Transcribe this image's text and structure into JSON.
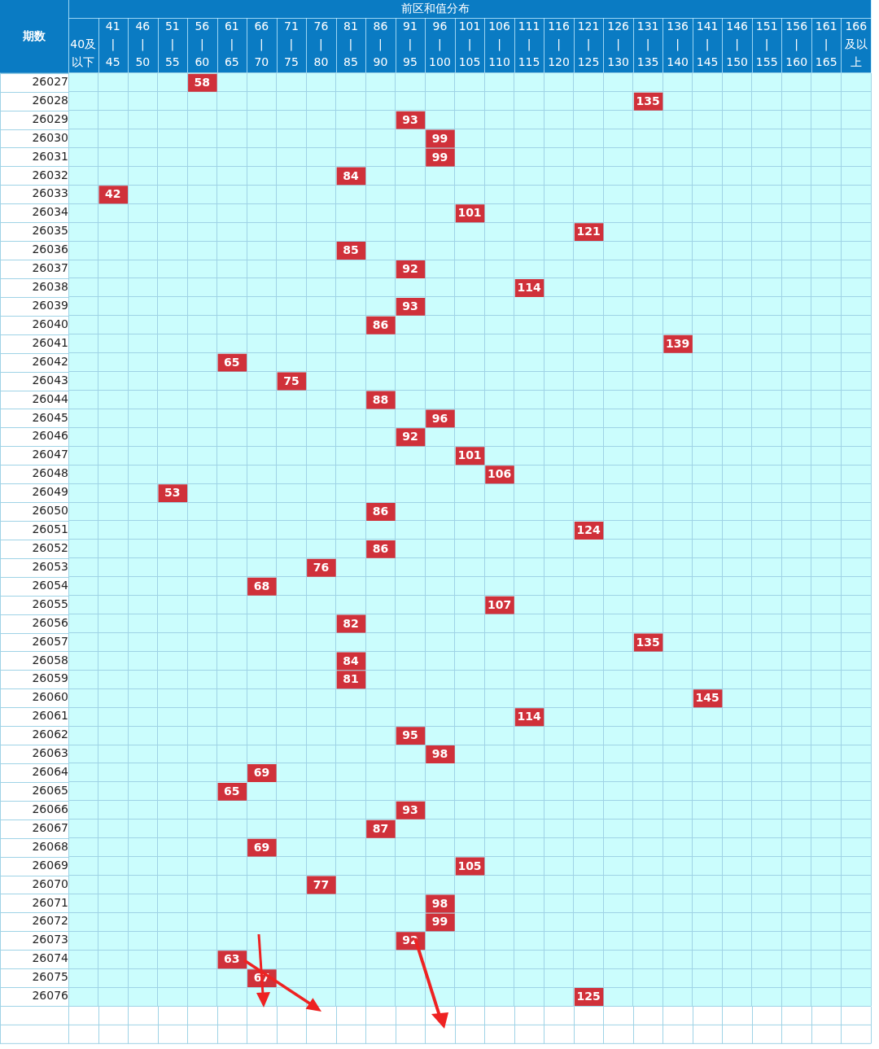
{
  "chart_data": {
    "type": "heatmap",
    "title": "前区和值分布",
    "ylabel": "期数",
    "color": "#d0313a",
    "data_labels": true,
    "categories": [
      "40及以下",
      "41\n|\n45",
      "46\n|\n50",
      "51\n|\n55",
      "56\n|\n60",
      "61\n|\n65",
      "66\n|\n70",
      "71\n|\n75",
      "76\n|\n80",
      "81\n|\n85",
      "86\n|\n90",
      "91\n|\n95",
      "96\n|\n100",
      "101\n|\n105",
      "106\n|\n110",
      "111\n|\n115",
      "116\n|\n120",
      "121\n|\n125",
      "126\n|\n130",
      "131\n|\n135",
      "136\n|\n140",
      "141\n|\n145",
      "146\n|\n150",
      "151\n|\n155",
      "156\n|\n160",
      "161\n|\n165",
      "166及以上"
    ],
    "y_categories": [
      "26027",
      "26028",
      "26029",
      "26030",
      "26031",
      "26032",
      "26033",
      "26034",
      "26035",
      "26036",
      "26037",
      "26038",
      "26039",
      "26040",
      "26041",
      "26042",
      "26043",
      "26044",
      "26045",
      "26046",
      "26047",
      "26048",
      "26049",
      "26050",
      "26051",
      "26052",
      "26053",
      "26054",
      "26055",
      "26056",
      "26057",
      "26058",
      "26059",
      "26060",
      "26061",
      "26062",
      "26063",
      "26064",
      "26065",
      "26066",
      "26067",
      "26068",
      "26069",
      "26070",
      "26071",
      "26072",
      "26073",
      "26074",
      "26075",
      "26076"
    ],
    "cells": [
      [
        null,
        null,
        null,
        null,
        58,
        null,
        null,
        null,
        null,
        null,
        null,
        null,
        null,
        null,
        null,
        null,
        null,
        null,
        null,
        null,
        null,
        null,
        null,
        null,
        null,
        null,
        null
      ],
      [
        null,
        null,
        null,
        null,
        null,
        null,
        null,
        null,
        null,
        null,
        null,
        null,
        null,
        null,
        null,
        null,
        null,
        null,
        null,
        135,
        null,
        null,
        null,
        null,
        null,
        null,
        null
      ],
      [
        null,
        null,
        null,
        null,
        null,
        null,
        null,
        null,
        null,
        null,
        null,
        93,
        null,
        null,
        null,
        null,
        null,
        null,
        null,
        null,
        null,
        null,
        null,
        null,
        null,
        null,
        null
      ],
      [
        null,
        null,
        null,
        null,
        null,
        null,
        null,
        null,
        null,
        null,
        null,
        null,
        99,
        null,
        null,
        null,
        null,
        null,
        null,
        null,
        null,
        null,
        null,
        null,
        null,
        null,
        null
      ],
      [
        null,
        null,
        null,
        null,
        null,
        null,
        null,
        null,
        null,
        null,
        null,
        null,
        99,
        null,
        null,
        null,
        null,
        null,
        null,
        null,
        null,
        null,
        null,
        null,
        null,
        null,
        null
      ],
      [
        null,
        null,
        null,
        null,
        null,
        null,
        null,
        null,
        null,
        84,
        null,
        null,
        null,
        null,
        null,
        null,
        null,
        null,
        null,
        null,
        null,
        null,
        null,
        null,
        null,
        null,
        null
      ],
      [
        null,
        42,
        null,
        null,
        null,
        null,
        null,
        null,
        null,
        null,
        null,
        null,
        null,
        null,
        null,
        null,
        null,
        null,
        null,
        null,
        null,
        null,
        null,
        null,
        null,
        null,
        null
      ],
      [
        null,
        null,
        null,
        null,
        null,
        null,
        null,
        null,
        null,
        null,
        null,
        null,
        null,
        101,
        null,
        null,
        null,
        null,
        null,
        null,
        null,
        null,
        null,
        null,
        null,
        null,
        null
      ],
      [
        null,
        null,
        null,
        null,
        null,
        null,
        null,
        null,
        null,
        null,
        null,
        null,
        null,
        null,
        null,
        null,
        null,
        121,
        null,
        null,
        null,
        null,
        null,
        null,
        null,
        null,
        null
      ],
      [
        null,
        null,
        null,
        null,
        null,
        null,
        null,
        null,
        null,
        85,
        null,
        null,
        null,
        null,
        null,
        null,
        null,
        null,
        null,
        null,
        null,
        null,
        null,
        null,
        null,
        null,
        null
      ],
      [
        null,
        null,
        null,
        null,
        null,
        null,
        null,
        null,
        null,
        null,
        null,
        92,
        null,
        null,
        null,
        null,
        null,
        null,
        null,
        null,
        null,
        null,
        null,
        null,
        null,
        null,
        null
      ],
      [
        null,
        null,
        null,
        null,
        null,
        null,
        null,
        null,
        null,
        null,
        null,
        null,
        null,
        null,
        null,
        114,
        null,
        null,
        null,
        null,
        null,
        null,
        null,
        null,
        null,
        null,
        null
      ],
      [
        null,
        null,
        null,
        null,
        null,
        null,
        null,
        null,
        null,
        null,
        null,
        93,
        null,
        null,
        null,
        null,
        null,
        null,
        null,
        null,
        null,
        null,
        null,
        null,
        null,
        null,
        null
      ],
      [
        null,
        null,
        null,
        null,
        null,
        null,
        null,
        null,
        null,
        null,
        86,
        null,
        null,
        null,
        null,
        null,
        null,
        null,
        null,
        null,
        null,
        null,
        null,
        null,
        null,
        null,
        null
      ],
      [
        null,
        null,
        null,
        null,
        null,
        null,
        null,
        null,
        null,
        null,
        null,
        null,
        null,
        null,
        null,
        null,
        null,
        null,
        null,
        null,
        139,
        null,
        null,
        null,
        null,
        null,
        null
      ],
      [
        null,
        null,
        null,
        null,
        null,
        65,
        null,
        null,
        null,
        null,
        null,
        null,
        null,
        null,
        null,
        null,
        null,
        null,
        null,
        null,
        null,
        null,
        null,
        null,
        null,
        null,
        null
      ],
      [
        null,
        null,
        null,
        null,
        null,
        null,
        null,
        75,
        null,
        null,
        null,
        null,
        null,
        null,
        null,
        null,
        null,
        null,
        null,
        null,
        null,
        null,
        null,
        null,
        null,
        null,
        null
      ],
      [
        null,
        null,
        null,
        null,
        null,
        null,
        null,
        null,
        null,
        null,
        88,
        null,
        null,
        null,
        null,
        null,
        null,
        null,
        null,
        null,
        null,
        null,
        null,
        null,
        null,
        null,
        null
      ],
      [
        null,
        null,
        null,
        null,
        null,
        null,
        null,
        null,
        null,
        null,
        null,
        null,
        96,
        null,
        null,
        null,
        null,
        null,
        null,
        null,
        null,
        null,
        null,
        null,
        null,
        null,
        null
      ],
      [
        null,
        null,
        null,
        null,
        null,
        null,
        null,
        null,
        null,
        null,
        null,
        92,
        null,
        null,
        null,
        null,
        null,
        null,
        null,
        null,
        null,
        null,
        null,
        null,
        null,
        null,
        null
      ],
      [
        null,
        null,
        null,
        null,
        null,
        null,
        null,
        null,
        null,
        null,
        null,
        null,
        null,
        101,
        null,
        null,
        null,
        null,
        null,
        null,
        null,
        null,
        null,
        null,
        null,
        null,
        null
      ],
      [
        null,
        null,
        null,
        null,
        null,
        null,
        null,
        null,
        null,
        null,
        null,
        null,
        null,
        null,
        106,
        null,
        null,
        null,
        null,
        null,
        null,
        null,
        null,
        null,
        null,
        null,
        null
      ],
      [
        null,
        null,
        null,
        53,
        null,
        null,
        null,
        null,
        null,
        null,
        null,
        null,
        null,
        null,
        null,
        null,
        null,
        null,
        null,
        null,
        null,
        null,
        null,
        null,
        null,
        null,
        null
      ],
      [
        null,
        null,
        null,
        null,
        null,
        null,
        null,
        null,
        null,
        null,
        86,
        null,
        null,
        null,
        null,
        null,
        null,
        null,
        null,
        null,
        null,
        null,
        null,
        null,
        null,
        null,
        null
      ],
      [
        null,
        null,
        null,
        null,
        null,
        null,
        null,
        null,
        null,
        null,
        null,
        null,
        null,
        null,
        null,
        null,
        null,
        124,
        null,
        null,
        null,
        null,
        null,
        null,
        null,
        null,
        null
      ],
      [
        null,
        null,
        null,
        null,
        null,
        null,
        null,
        null,
        null,
        null,
        86,
        null,
        null,
        null,
        null,
        null,
        null,
        null,
        null,
        null,
        null,
        null,
        null,
        null,
        null,
        null,
        null
      ],
      [
        null,
        null,
        null,
        null,
        null,
        null,
        null,
        null,
        76,
        null,
        null,
        null,
        null,
        null,
        null,
        null,
        null,
        null,
        null,
        null,
        null,
        null,
        null,
        null,
        null,
        null,
        null
      ],
      [
        null,
        null,
        null,
        null,
        null,
        null,
        68,
        null,
        null,
        null,
        null,
        null,
        null,
        null,
        null,
        null,
        null,
        null,
        null,
        null,
        null,
        null,
        null,
        null,
        null,
        null,
        null
      ],
      [
        null,
        null,
        null,
        null,
        null,
        null,
        null,
        null,
        null,
        null,
        null,
        null,
        null,
        null,
        107,
        null,
        null,
        null,
        null,
        null,
        null,
        null,
        null,
        null,
        null,
        null,
        null
      ],
      [
        null,
        null,
        null,
        null,
        null,
        null,
        null,
        null,
        null,
        82,
        null,
        null,
        null,
        null,
        null,
        null,
        null,
        null,
        null,
        null,
        null,
        null,
        null,
        null,
        null,
        null,
        null
      ],
      [
        null,
        null,
        null,
        null,
        null,
        null,
        null,
        null,
        null,
        null,
        null,
        null,
        null,
        null,
        null,
        null,
        null,
        null,
        null,
        135,
        null,
        null,
        null,
        null,
        null,
        null,
        null
      ],
      [
        null,
        null,
        null,
        null,
        null,
        null,
        null,
        null,
        null,
        84,
        null,
        null,
        null,
        null,
        null,
        null,
        null,
        null,
        null,
        null,
        null,
        null,
        null,
        null,
        null,
        null,
        null
      ],
      [
        null,
        null,
        null,
        null,
        null,
        null,
        null,
        null,
        null,
        81,
        null,
        null,
        null,
        null,
        null,
        null,
        null,
        null,
        null,
        null,
        null,
        null,
        null,
        null,
        null,
        null,
        null
      ],
      [
        null,
        null,
        null,
        null,
        null,
        null,
        null,
        null,
        null,
        null,
        null,
        null,
        null,
        null,
        null,
        null,
        null,
        null,
        null,
        null,
        null,
        145,
        null,
        null,
        null,
        null,
        null
      ],
      [
        null,
        null,
        null,
        null,
        null,
        null,
        null,
        null,
        null,
        null,
        null,
        null,
        null,
        null,
        null,
        114,
        null,
        null,
        null,
        null,
        null,
        null,
        null,
        null,
        null,
        null,
        null
      ],
      [
        null,
        null,
        null,
        null,
        null,
        null,
        null,
        null,
        null,
        null,
        null,
        95,
        null,
        null,
        null,
        null,
        null,
        null,
        null,
        null,
        null,
        null,
        null,
        null,
        null,
        null,
        null
      ],
      [
        null,
        null,
        null,
        null,
        null,
        null,
        null,
        null,
        null,
        null,
        null,
        null,
        98,
        null,
        null,
        null,
        null,
        null,
        null,
        null,
        null,
        null,
        null,
        null,
        null,
        null,
        null
      ],
      [
        null,
        null,
        null,
        null,
        null,
        null,
        69,
        null,
        null,
        null,
        null,
        null,
        null,
        null,
        null,
        null,
        null,
        null,
        null,
        null,
        null,
        null,
        null,
        null,
        null,
        null,
        null
      ],
      [
        null,
        null,
        null,
        null,
        null,
        65,
        null,
        null,
        null,
        null,
        null,
        null,
        null,
        null,
        null,
        null,
        null,
        null,
        null,
        null,
        null,
        null,
        null,
        null,
        null,
        null,
        null
      ],
      [
        null,
        null,
        null,
        null,
        null,
        null,
        null,
        null,
        null,
        null,
        null,
        93,
        null,
        null,
        null,
        null,
        null,
        null,
        null,
        null,
        null,
        null,
        null,
        null,
        null,
        null,
        null
      ],
      [
        null,
        null,
        null,
        null,
        null,
        null,
        null,
        null,
        null,
        null,
        87,
        null,
        null,
        null,
        null,
        null,
        null,
        null,
        null,
        null,
        null,
        null,
        null,
        null,
        null,
        null,
        null
      ],
      [
        null,
        null,
        null,
        null,
        null,
        null,
        69,
        null,
        null,
        null,
        null,
        null,
        null,
        null,
        null,
        null,
        null,
        null,
        null,
        null,
        null,
        null,
        null,
        null,
        null,
        null,
        null
      ],
      [
        null,
        null,
        null,
        null,
        null,
        null,
        null,
        null,
        null,
        null,
        null,
        null,
        null,
        105,
        null,
        null,
        null,
        null,
        null,
        null,
        null,
        null,
        null,
        null,
        null,
        null,
        null
      ],
      [
        null,
        null,
        null,
        null,
        null,
        null,
        null,
        null,
        77,
        null,
        null,
        null,
        null,
        null,
        null,
        null,
        null,
        null,
        null,
        null,
        null,
        null,
        null,
        null,
        null,
        null,
        null
      ],
      [
        null,
        null,
        null,
        null,
        null,
        null,
        null,
        null,
        null,
        null,
        null,
        null,
        98,
        null,
        null,
        null,
        null,
        null,
        null,
        null,
        null,
        null,
        null,
        null,
        null,
        null,
        null
      ],
      [
        null,
        null,
        null,
        null,
        null,
        null,
        null,
        null,
        null,
        null,
        null,
        null,
        99,
        null,
        null,
        null,
        null,
        null,
        null,
        null,
        null,
        null,
        null,
        null,
        null,
        null,
        null
      ],
      [
        null,
        null,
        null,
        null,
        null,
        null,
        null,
        null,
        null,
        null,
        null,
        92,
        null,
        null,
        null,
        null,
        null,
        null,
        null,
        null,
        null,
        null,
        null,
        null,
        null,
        null,
        null
      ],
      [
        null,
        null,
        null,
        null,
        null,
        63,
        null,
        null,
        null,
        null,
        null,
        null,
        null,
        null,
        null,
        null,
        null,
        null,
        null,
        null,
        null,
        null,
        null,
        null,
        null,
        null,
        null
      ],
      [
        null,
        null,
        null,
        null,
        null,
        null,
        67,
        null,
        null,
        null,
        null,
        null,
        null,
        null,
        null,
        null,
        null,
        null,
        null,
        null,
        null,
        null,
        null,
        null,
        null,
        null,
        null
      ],
      [
        null,
        null,
        null,
        null,
        null,
        null,
        null,
        null,
        null,
        null,
        null,
        null,
        null,
        null,
        null,
        null,
        null,
        125,
        null,
        null,
        null,
        null,
        null,
        null,
        null,
        null,
        null
      ]
    ]
  }
}
